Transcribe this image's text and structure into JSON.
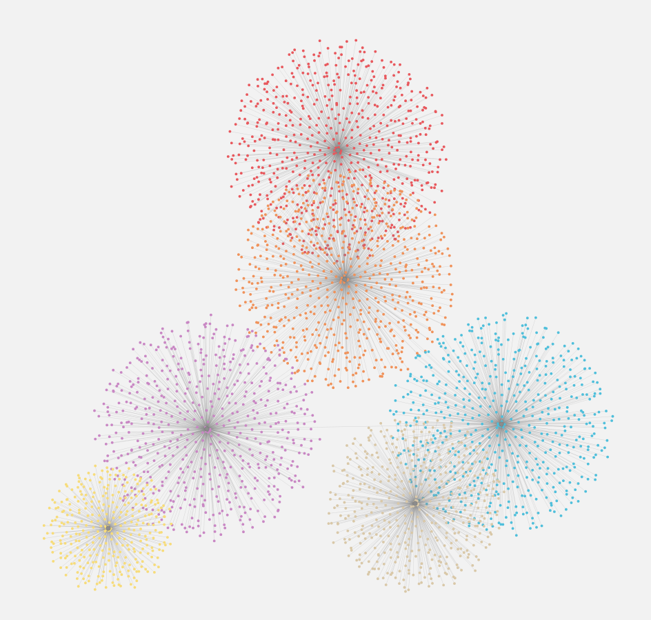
{
  "canvas": {
    "background": "#f2f2f2",
    "edge_color": "#8a8a8a",
    "hub_color": "#8c8c8c"
  },
  "clusters": [
    {
      "id": "red-cluster",
      "color": "#e8585d",
      "node_count": 620
    },
    {
      "id": "orange-cluster",
      "color": "#f0925a",
      "node_count": 620
    },
    {
      "id": "purple-cluster",
      "color": "#c987c4",
      "node_count": 560
    },
    {
      "id": "cyan-cluster",
      "color": "#4fbfdb",
      "node_count": 560
    },
    {
      "id": "beige-cluster",
      "color": "#d9c8a8",
      "node_count": 460
    },
    {
      "id": "yellow-cluster",
      "color": "#f7dc7a",
      "node_count": 320
    }
  ],
  "hub_links": [
    [
      "red-cluster",
      "orange-cluster"
    ],
    [
      "orange-cluster",
      "purple-cluster"
    ],
    [
      "orange-cluster",
      "cyan-cluster"
    ],
    [
      "purple-cluster",
      "cyan-cluster"
    ],
    [
      "purple-cluster",
      "yellow-cluster"
    ],
    [
      "cyan-cluster",
      "beige-cluster"
    ]
  ]
}
